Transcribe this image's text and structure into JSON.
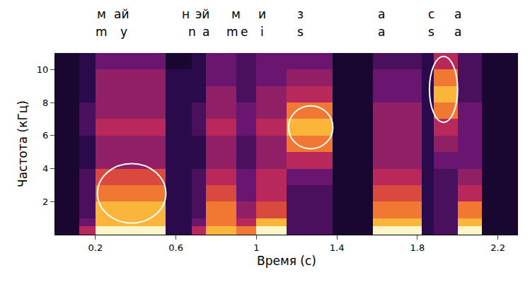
{
  "chart_data": {
    "type": "heatmap",
    "x_label": "Время (с)",
    "y_label": "Частота (кГц)",
    "xlim": [
      0,
      2.3
    ],
    "xticks": [
      0.2,
      0.6,
      1.0,
      1.4,
      1.8,
      2.2
    ],
    "ylim": [
      0,
      11
    ],
    "yticks": [
      2,
      4,
      6,
      8,
      10
    ],
    "grid": false,
    "x_edges": [
      0,
      0.12,
      0.2,
      0.55,
      0.68,
      0.75,
      0.9,
      1.0,
      1.15,
      1.38,
      1.58,
      1.82,
      1.88,
      2.0,
      2.12,
      2.3
    ],
    "y_edges": [
      0,
      0.5,
      1,
      2,
      3,
      4,
      5,
      6,
      7,
      8,
      9,
      10,
      11
    ],
    "zlim": [
      0,
      10
    ],
    "cells": [
      [
        1,
        6,
        10,
        2,
        6,
        9,
        8,
        10,
        3,
        1,
        10,
        2,
        3,
        10,
        1
      ],
      [
        1,
        4,
        9,
        2,
        4,
        8,
        6,
        9,
        3,
        1,
        9,
        2,
        3,
        9,
        1
      ],
      [
        1,
        3,
        9,
        2,
        3,
        8,
        5,
        7,
        3,
        1,
        8,
        2,
        3,
        8,
        1
      ],
      [
        1,
        3,
        8,
        2,
        3,
        7,
        4,
        6,
        3,
        1,
        7,
        2,
        3,
        6,
        1
      ],
      [
        1,
        3,
        7,
        2,
        3,
        6,
        4,
        6,
        4,
        1,
        6,
        2,
        3,
        5,
        1
      ],
      [
        1,
        2,
        5,
        2,
        2,
        5,
        3,
        5,
        6,
        1,
        5,
        2,
        4,
        4,
        1
      ],
      [
        1,
        2,
        5,
        2,
        2,
        5,
        3,
        5,
        8,
        1,
        5,
        2,
        5,
        4,
        1
      ],
      [
        1,
        3,
        6,
        2,
        3,
        6,
        4,
        6,
        9,
        1,
        5,
        2,
        6,
        4,
        1
      ],
      [
        1,
        3,
        5,
        2,
        3,
        5,
        4,
        5,
        8,
        1,
        5,
        2,
        8,
        4,
        1
      ],
      [
        1,
        2,
        5,
        2,
        2,
        5,
        3,
        5,
        6,
        1,
        4,
        2,
        9,
        3,
        1
      ],
      [
        1,
        2,
        5,
        2,
        2,
        4,
        3,
        4,
        5,
        1,
        4,
        2,
        8,
        3,
        1
      ],
      [
        1,
        2,
        4,
        1,
        2,
        4,
        3,
        4,
        4,
        1,
        3,
        2,
        6,
        3,
        1
      ]
    ],
    "annotations": {
      "cyrillic": [
        {
          "text": "м",
          "x": 0.23
        },
        {
          "text": "ай",
          "x": 0.33
        },
        {
          "text": "н",
          "x": 0.65
        },
        {
          "text": "эй",
          "x": 0.73
        },
        {
          "text": "м",
          "x": 0.9
        },
        {
          "text": "и",
          "x": 1.03
        },
        {
          "text": "з",
          "x": 1.22
        },
        {
          "text": "а",
          "x": 1.62
        },
        {
          "text": "с",
          "x": 1.87
        },
        {
          "text": "а",
          "x": 2.0
        }
      ],
      "latin": [
        {
          "text": "m",
          "x": 0.23
        },
        {
          "text": "y",
          "x": 0.34
        },
        {
          "text": "n",
          "x": 0.68
        },
        {
          "text": "a",
          "x": 0.75
        },
        {
          "text": "m",
          "x": 0.88
        },
        {
          "text": "e",
          "x": 0.94
        },
        {
          "text": "i",
          "x": 1.03
        },
        {
          "text": "s",
          "x": 1.22
        },
        {
          "text": "a",
          "x": 1.62
        },
        {
          "text": "s",
          "x": 1.87
        },
        {
          "text": "a",
          "x": 2.0
        }
      ]
    },
    "highlights": [
      {
        "x": 0.38,
        "y": 2.5,
        "rx": 0.17,
        "ry": 1.8
      },
      {
        "x": 1.27,
        "y": 6.5,
        "rx": 0.11,
        "ry": 1.3
      },
      {
        "x": 1.93,
        "y": 8.8,
        "rx": 0.07,
        "ry": 2.0
      }
    ]
  }
}
